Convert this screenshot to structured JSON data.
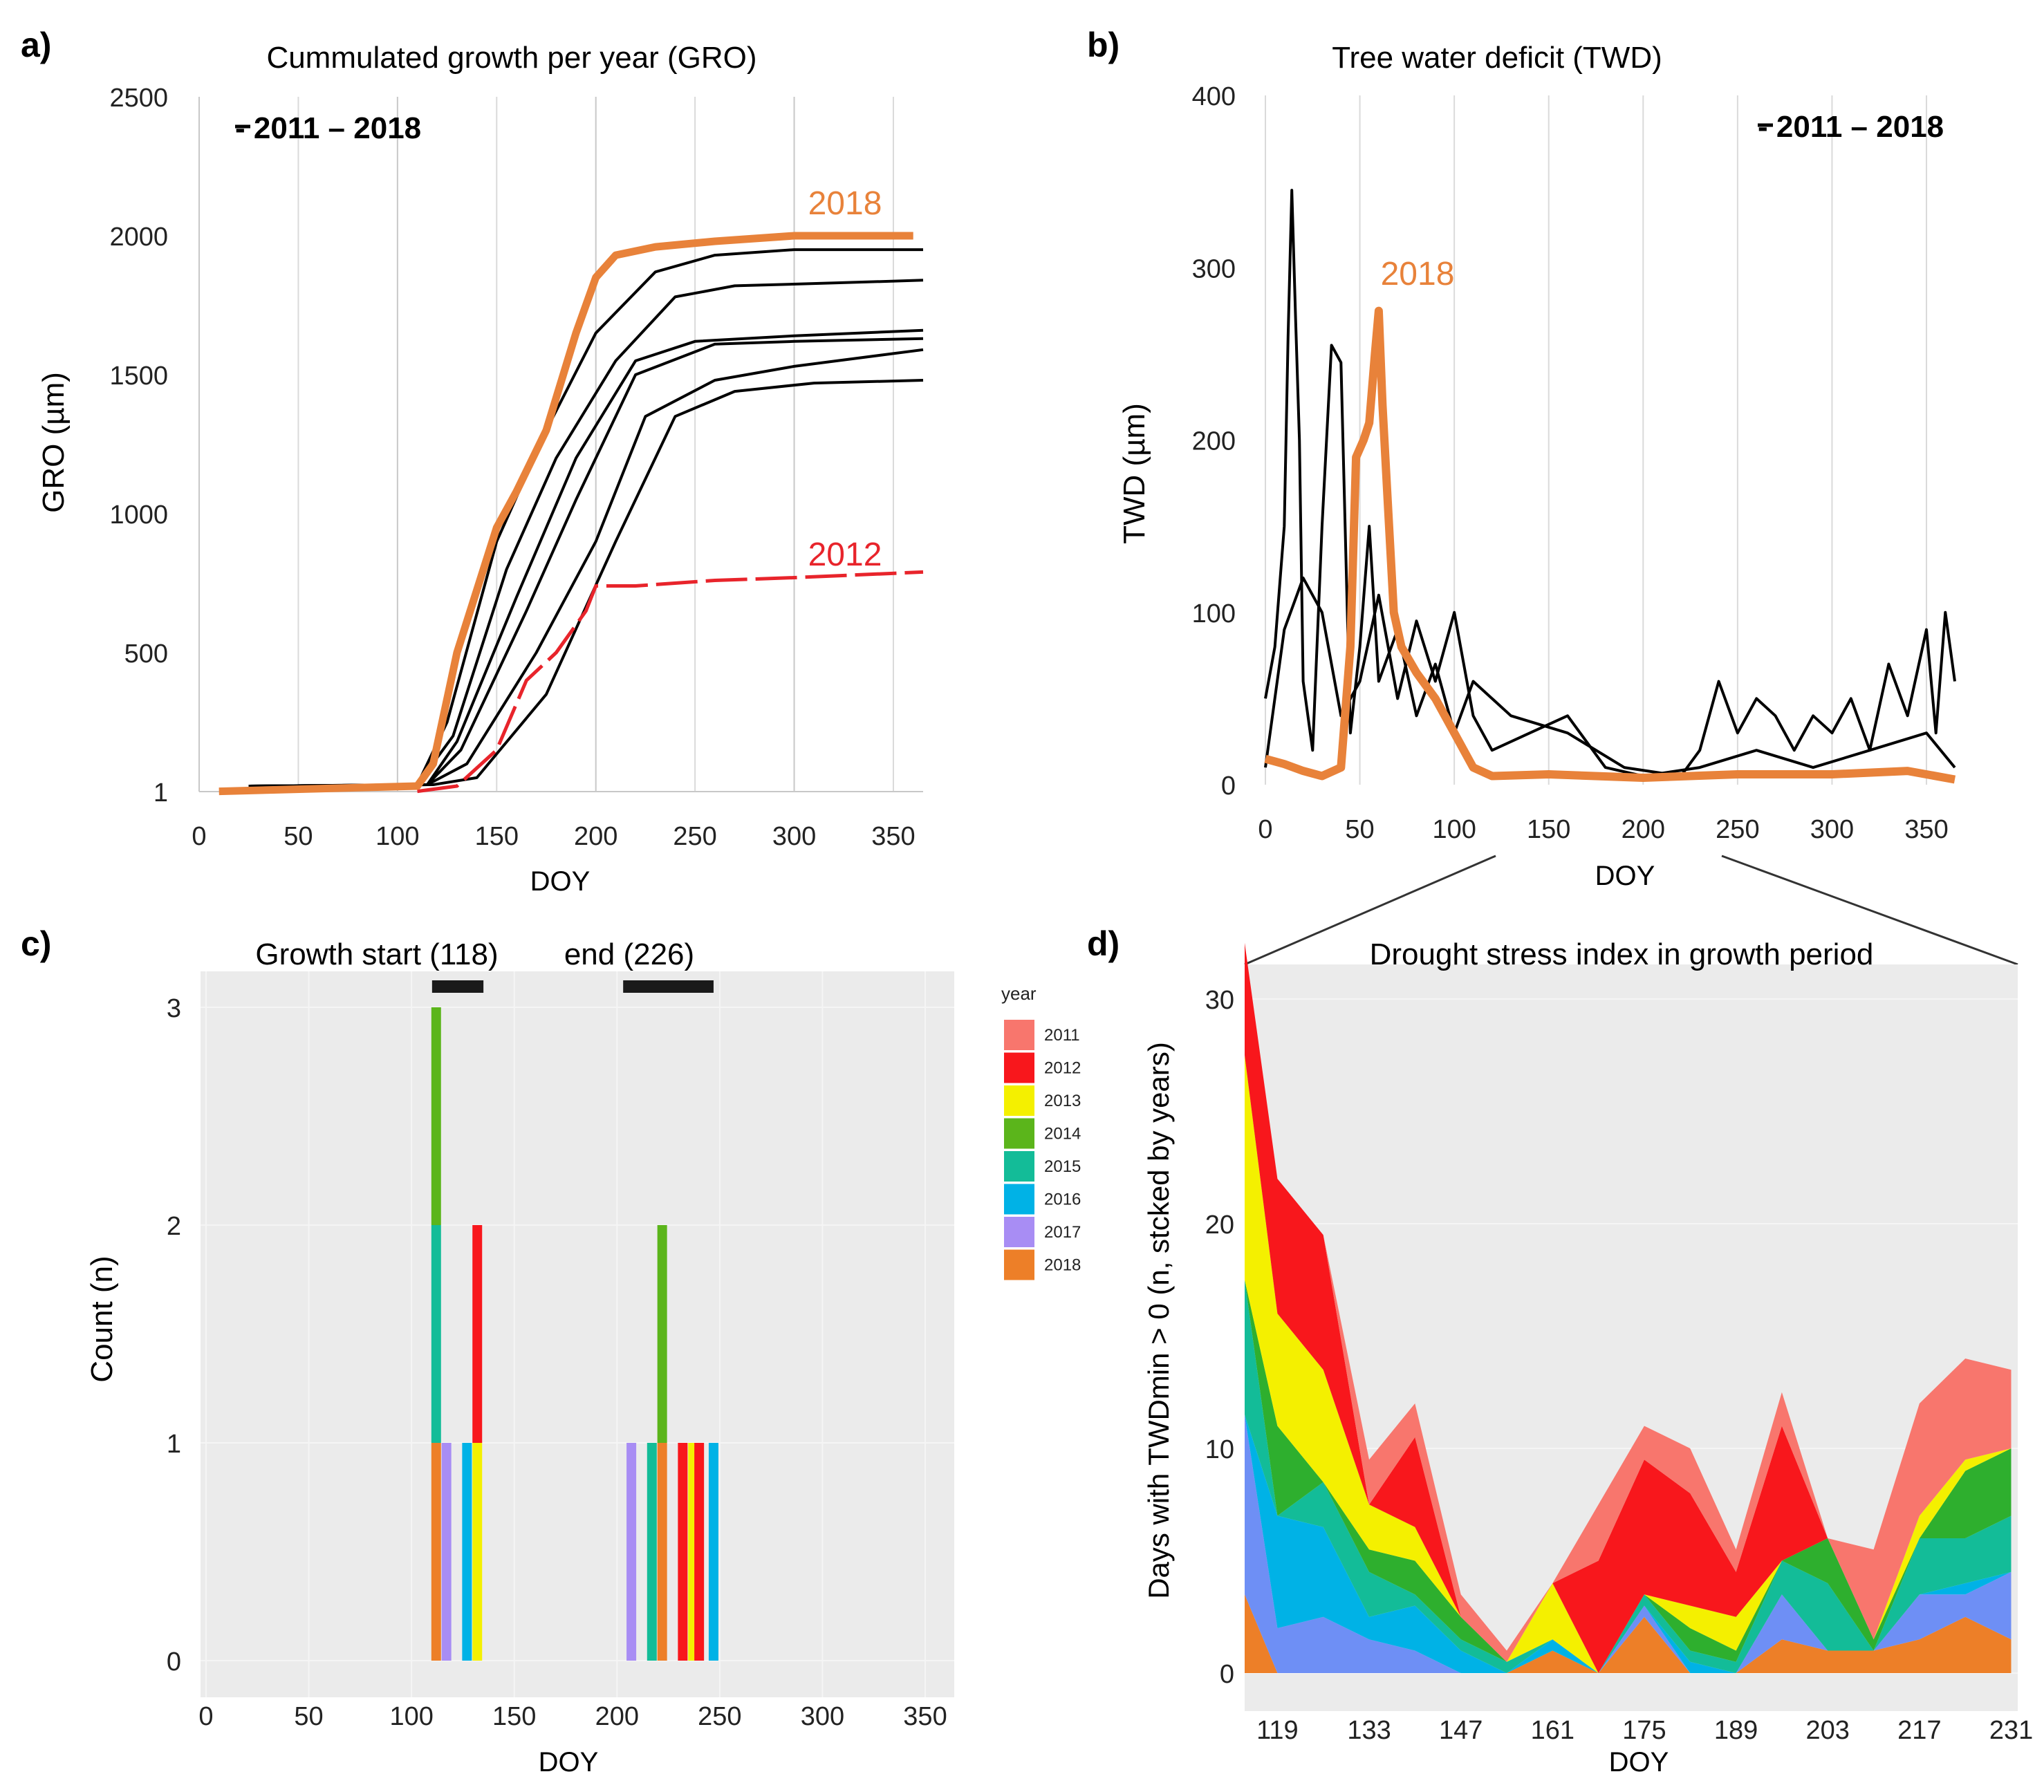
{
  "figure": {
    "colors": {
      "black": "#000000",
      "orange": "#E8823A",
      "red": "#E8242B",
      "gridlines": "#DADADA",
      "panel_bg": "#EBEBEB"
    }
  },
  "chart_data": [
    {
      "panel": "a)",
      "type": "line",
      "title": "Cummulated growth per year (GRO)",
      "xlabel": "DOY",
      "ylabel": "GRO (µm)",
      "xlim": [
        0,
        365
      ],
      "ylim": [
        0,
        2500
      ],
      "xticks": [
        "0",
        "50",
        "100",
        "150",
        "200",
        "250",
        "300",
        "350"
      ],
      "yticks": [
        "1",
        "500",
        "1000",
        "1500",
        "2000",
        "2500"
      ],
      "legend": "- 2011 – 2018",
      "annotations": [
        {
          "text": "2018",
          "color": "#E8823A"
        },
        {
          "text": "2012",
          "color": "#E8242B"
        }
      ],
      "series": [
        {
          "name": "2018",
          "color": "#E8823A",
          "x": [
            10,
            110,
            118,
            130,
            150,
            160,
            175,
            190,
            200,
            210,
            230,
            260,
            300,
            360
          ],
          "y": [
            1,
            20,
            100,
            500,
            950,
            1080,
            1300,
            1650,
            1850,
            1930,
            1960,
            1980,
            2000,
            2000
          ]
        },
        {
          "name": "2012",
          "color": "#E8242B",
          "x": [
            110,
            130,
            150,
            165,
            180,
            195,
            200,
            220,
            260,
            300,
            365
          ],
          "y": [
            1,
            20,
            150,
            400,
            500,
            650,
            740,
            740,
            760,
            770,
            790
          ]
        },
        {
          "name": "2011–2018 a",
          "color": "#000000",
          "x": [
            25,
            110,
            125,
            150,
            175,
            200,
            230,
            260,
            300,
            365
          ],
          "y": [
            20,
            25,
            250,
            900,
            1300,
            1650,
            1870,
            1930,
            1950,
            1950
          ]
        },
        {
          "name": "2011–2018 b",
          "color": "#000000",
          "x": [
            25,
            110,
            128,
            155,
            180,
            210,
            240,
            270,
            320,
            365
          ],
          "y": [
            20,
            25,
            200,
            800,
            1200,
            1550,
            1780,
            1820,
            1830,
            1840
          ]
        },
        {
          "name": "2011–2018 c",
          "color": "#000000",
          "x": [
            25,
            115,
            130,
            160,
            190,
            220,
            250,
            300,
            365
          ],
          "y": [
            20,
            25,
            180,
            700,
            1200,
            1550,
            1620,
            1640,
            1660
          ]
        },
        {
          "name": "2011–2018 d",
          "color": "#000000",
          "x": [
            25,
            115,
            132,
            165,
            190,
            220,
            260,
            300,
            365
          ],
          "y": [
            20,
            25,
            150,
            650,
            1050,
            1500,
            1610,
            1620,
            1630
          ]
        },
        {
          "name": "2011–2018 e",
          "color": "#000000",
          "x": [
            25,
            115,
            135,
            170,
            200,
            225,
            260,
            300,
            365
          ],
          "y": [
            20,
            25,
            100,
            500,
            900,
            1350,
            1480,
            1530,
            1590
          ]
        },
        {
          "name": "2011–2018 f",
          "color": "#000000",
          "x": [
            25,
            118,
            140,
            175,
            210,
            240,
            270,
            310,
            365
          ],
          "y": [
            20,
            25,
            50,
            350,
            900,
            1350,
            1440,
            1470,
            1480
          ]
        }
      ]
    },
    {
      "panel": "b)",
      "type": "line",
      "title": "Tree water deficit (TWD)",
      "xlabel": "DOY",
      "ylabel": "TWD (µm)",
      "xlim": [
        -5,
        370
      ],
      "ylim": [
        0,
        400
      ],
      "xticks": [
        "0",
        "50",
        "100",
        "150",
        "200",
        "250",
        "300",
        "350"
      ],
      "yticks": [
        "0",
        "100",
        "200",
        "300",
        "400"
      ],
      "legend": "- 2011 – 2018",
      "annotations": [
        {
          "text": "2018",
          "color": "#E8823A"
        }
      ],
      "series": [
        {
          "name": "2018",
          "color": "#E8823A",
          "x": [
            0,
            10,
            20,
            30,
            40,
            45,
            48,
            52,
            55,
            58,
            60,
            62,
            65,
            68,
            72,
            80,
            90,
            100,
            110,
            120,
            150,
            200,
            250,
            300,
            340,
            365
          ],
          "y": [
            15,
            12,
            8,
            5,
            10,
            80,
            190,
            200,
            210,
            250,
            275,
            220,
            160,
            100,
            80,
            65,
            50,
            30,
            10,
            5,
            6,
            4,
            6,
            6,
            8,
            3
          ]
        },
        {
          "name": "2011–2018 a",
          "color": "#000000",
          "x": [
            0,
            5,
            10,
            12,
            14,
            16,
            18,
            20,
            25,
            30,
            35,
            40,
            45,
            50,
            55,
            60,
            70,
            80,
            90,
            100,
            110,
            130,
            160,
            190,
            220,
            230,
            240,
            250,
            260,
            270,
            280,
            290,
            300,
            310,
            320,
            330,
            340,
            350,
            355,
            360,
            365
          ],
          "y": [
            50,
            80,
            150,
            260,
            345,
            270,
            200,
            60,
            20,
            150,
            255,
            245,
            30,
            80,
            150,
            60,
            90,
            40,
            70,
            30,
            60,
            40,
            30,
            10,
            5,
            20,
            60,
            30,
            50,
            40,
            20,
            40,
            30,
            50,
            20,
            70,
            40,
            90,
            30,
            100,
            60
          ]
        },
        {
          "name": "2011–2018 b",
          "color": "#000000",
          "x": [
            0,
            10,
            20,
            30,
            40,
            50,
            60,
            70,
            80,
            90,
            100,
            110,
            120,
            140,
            160,
            180,
            200,
            230,
            260,
            290,
            320,
            350,
            365
          ],
          "y": [
            10,
            90,
            120,
            100,
            40,
            60,
            110,
            50,
            95,
            60,
            100,
            40,
            20,
            30,
            40,
            10,
            5,
            10,
            20,
            10,
            20,
            30,
            10
          ]
        }
      ]
    },
    {
      "panel": "c)",
      "type": "bar",
      "title": "Growth start (118)   end (226)",
      "title_start": "Growth start (118)",
      "title_end": "end (226)",
      "xlabel": "DOY",
      "ylabel": "Count (n)",
      "xlim": [
        0,
        380
      ],
      "ylim": [
        0,
        3.2
      ],
      "xticks": [
        "0",
        "50",
        "100",
        "150",
        "200",
        "250",
        "300",
        "350"
      ],
      "yticks": [
        "0",
        "1",
        "2",
        "3"
      ],
      "ranges": [
        {
          "label": "start",
          "from": 110,
          "to": 135
        },
        {
          "label": "end",
          "from": 203,
          "to": 247
        }
      ],
      "legend": {
        "title": "year",
        "entries": [
          {
            "year": "2011",
            "color": "#F8766D"
          },
          {
            "year": "2012",
            "color": "#F8171C"
          },
          {
            "year": "2013",
            "color": "#F4F000"
          },
          {
            "year": "2014",
            "color": "#5BB51B"
          },
          {
            "year": "2015",
            "color": "#13BC98"
          },
          {
            "year": "2016",
            "color": "#00B2E6"
          },
          {
            "year": "2017",
            "color": "#A88DF4"
          },
          {
            "year": "2018",
            "color": "#ED7F28"
          }
        ]
      },
      "bars": [
        {
          "x": 112,
          "stack": [
            {
              "year": "2018",
              "n": 1
            },
            {
              "year": "2015",
              "n": 1
            },
            {
              "year": "2014",
              "n": 1
            }
          ]
        },
        {
          "x": 117,
          "stack": [
            {
              "year": "2017",
              "n": 1
            }
          ]
        },
        {
          "x": 127,
          "stack": [
            {
              "year": "2016",
              "n": 1
            }
          ]
        },
        {
          "x": 132,
          "stack": [
            {
              "year": "2013",
              "n": 1
            },
            {
              "year": "2012",
              "n": 1
            }
          ]
        },
        {
          "x": 207,
          "stack": [
            {
              "year": "2017",
              "n": 1
            }
          ]
        },
        {
          "x": 217,
          "stack": [
            {
              "year": "2015",
              "n": 1
            }
          ]
        },
        {
          "x": 222,
          "stack": [
            {
              "year": "2018",
              "n": 1
            },
            {
              "year": "2014",
              "n": 1
            }
          ]
        },
        {
          "x": 232,
          "stack": [
            {
              "year": "2012",
              "n": 1
            }
          ]
        },
        {
          "x": 237,
          "stack": [
            {
              "year": "2013",
              "n": 1
            }
          ]
        },
        {
          "x": 240,
          "stack": [
            {
              "year": "2012",
              "n": 1
            }
          ]
        },
        {
          "x": 247,
          "stack": [
            {
              "year": "2016",
              "n": 1
            }
          ]
        }
      ]
    },
    {
      "panel": "d)",
      "type": "area",
      "title": "Drought stress index in growth period",
      "xlabel": "DOY",
      "ylabel": "Days with TWDmin > 0 (n, stcked by years)",
      "xlim": [
        114,
        232
      ],
      "ylim": [
        0,
        32
      ],
      "xticks": [
        "119",
        "133",
        "147",
        "161",
        "175",
        "189",
        "203",
        "217",
        "231"
      ],
      "yticks": [
        "0",
        "10",
        "20",
        "30"
      ],
      "x": [
        114,
        119,
        126,
        133,
        140,
        147,
        154,
        161,
        168,
        175,
        182,
        189,
        196,
        203,
        210,
        217,
        224,
        231
      ],
      "series": [
        {
          "name": "2018",
          "color": "#ED7F28",
          "values": [
            3.5,
            0,
            0,
            0,
            0,
            0,
            0,
            1,
            0,
            2.5,
            0,
            0,
            1.5,
            1,
            1,
            1.5,
            2.5,
            1.5
          ]
        },
        {
          "name": "2017",
          "color": "#6E8FF5",
          "values": [
            8,
            2,
            2.5,
            1.5,
            1,
            0,
            0,
            0,
            0,
            0.5,
            0,
            0,
            2,
            0,
            0,
            2,
            1,
            3
          ]
        },
        {
          "name": "2016",
          "color": "#00B2E6",
          "values": [
            0,
            5,
            4,
            1,
            2,
            1,
            0,
            0.5,
            0,
            0,
            0.5,
            0,
            0,
            0,
            0,
            0,
            0.5,
            0
          ]
        },
        {
          "name": "2015",
          "color": "#13BC98",
          "values": [
            6,
            0,
            2,
            2,
            0.5,
            0.5,
            0.5,
            0,
            0,
            0.5,
            0.5,
            0.5,
            1.5,
            3,
            0,
            2.5,
            2,
            2.5
          ]
        },
        {
          "name": "2014",
          "color": "#2EAF2E",
          "values": [
            0,
            4,
            0,
            1,
            1.5,
            1,
            0,
            0,
            0,
            0,
            1,
            0.5,
            0,
            2,
            0.5,
            0,
            3,
            3
          ]
        },
        {
          "name": "2013",
          "color": "#F4F000",
          "values": [
            10,
            5,
            5,
            2,
            1.5,
            0,
            0,
            2.5,
            0,
            0,
            1,
            1.5,
            0,
            0,
            0,
            1,
            0.5,
            0
          ]
        },
        {
          "name": "2012",
          "color": "#F8171C",
          "values": [
            5,
            6,
            6,
            0,
            4,
            0,
            0,
            0,
            5,
            6,
            5,
            2,
            6,
            0,
            0,
            0,
            0,
            0
          ]
        },
        {
          "name": "2011",
          "color": "#F8766D",
          "values": [
            0,
            0,
            0,
            2,
            1.5,
            1,
            0.5,
            0,
            2.5,
            1.5,
            2,
            1,
            1.5,
            0,
            4,
            5,
            4.5,
            3.5
          ]
        }
      ]
    }
  ]
}
